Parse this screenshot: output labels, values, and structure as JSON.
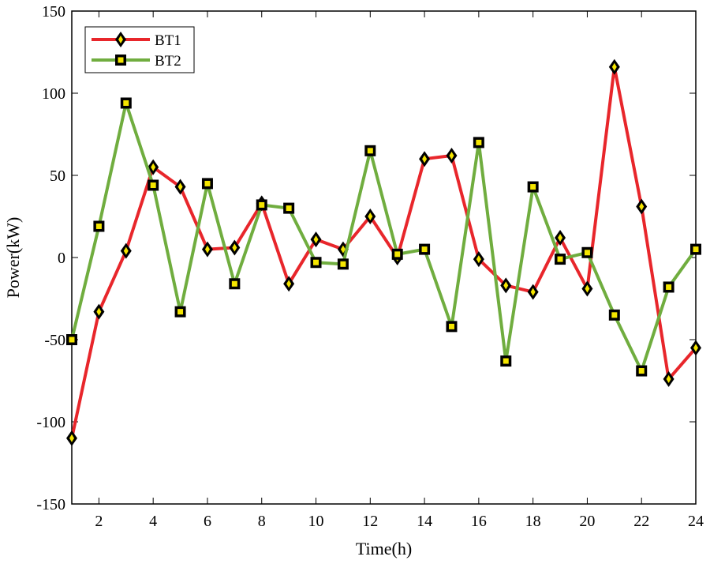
{
  "chart_data": {
    "type": "line",
    "title": "",
    "xlabel": "Time(h)",
    "ylabel": "Power(kW)",
    "xlim": [
      1,
      24
    ],
    "ylim": [
      -150,
      150
    ],
    "xticks": [
      2,
      4,
      6,
      8,
      10,
      12,
      14,
      16,
      18,
      20,
      22,
      24
    ],
    "yticks": [
      -150,
      -100,
      -50,
      0,
      50,
      100,
      150
    ],
    "grid": false,
    "legend_position": "top-left",
    "x": [
      1,
      2,
      3,
      4,
      5,
      6,
      7,
      8,
      9,
      10,
      11,
      12,
      13,
      14,
      15,
      16,
      17,
      18,
      19,
      20,
      21,
      22,
      23,
      24
    ],
    "series": [
      {
        "name": "BT1",
        "color": "#e8262b",
        "marker": "diamond",
        "values": [
          -110,
          -33,
          4,
          55,
          43,
          5,
          6,
          33,
          -16,
          11,
          5,
          25,
          0,
          60,
          62,
          -1,
          -17,
          -21,
          12,
          -19,
          116,
          31,
          -74,
          -55
        ]
      },
      {
        "name": "BT2",
        "color": "#70ad3f",
        "marker": "square",
        "values": [
          -50,
          19,
          94,
          44,
          -33,
          45,
          -16,
          32,
          30,
          -3,
          -4,
          65,
          2,
          5,
          -42,
          70,
          -63,
          43,
          -1,
          3,
          -35,
          -69,
          -18,
          5
        ]
      }
    ]
  }
}
